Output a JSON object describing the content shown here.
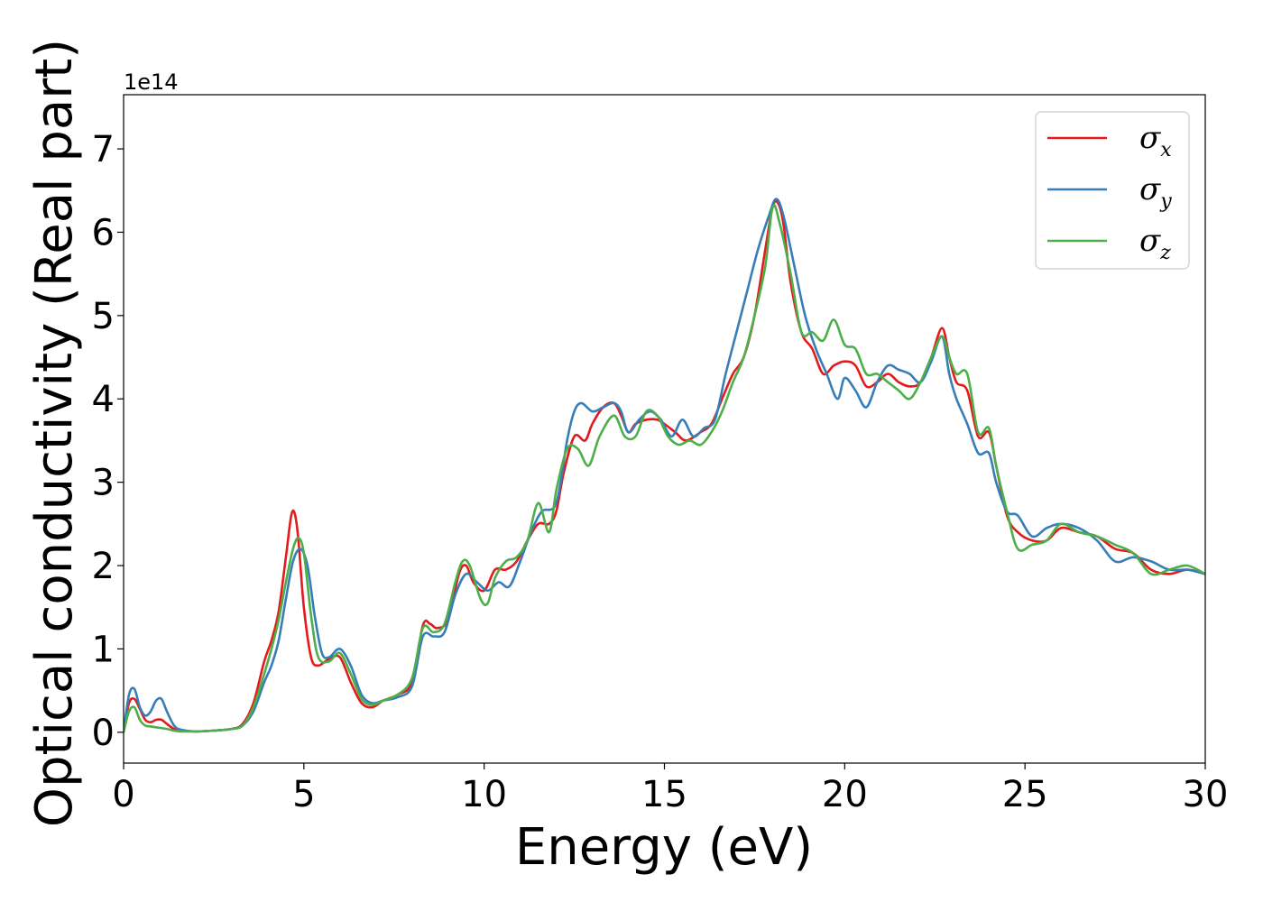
{
  "chart_data": {
    "type": "line",
    "xlabel": "Energy (eV)",
    "ylabel": "Optical conductivity (Real part)",
    "y_offset_label": "1e14",
    "xlim": [
      0,
      30
    ],
    "ylim": [
      -0.37,
      7.65
    ],
    "xticks": [
      0,
      5,
      10,
      15,
      20,
      25,
      30
    ],
    "yticks": [
      0,
      1,
      2,
      3,
      4,
      5,
      6,
      7
    ],
    "grid": false,
    "legend_position": "top-right",
    "series": [
      {
        "name": "σx",
        "symbol": "σ",
        "subscript": "x",
        "color": "#e41a1c",
        "x": [
          0,
          0.15,
          0.3,
          0.45,
          0.6,
          0.75,
          0.9,
          1.05,
          1.2,
          1.4,
          1.6,
          2,
          2.5,
          3,
          3.3,
          3.6,
          3.9,
          4.1,
          4.3,
          4.5,
          4.65,
          4.75,
          4.85,
          5,
          5.2,
          5.4,
          5.7,
          6,
          6.3,
          6.6,
          6.9,
          7.2,
          7.6,
          8,
          8.3,
          8.5,
          8.7,
          9,
          9.3,
          9.5,
          9.7,
          10,
          10.3,
          10.6,
          10.9,
          11.2,
          11.5,
          11.8,
          12,
          12.2,
          12.5,
          12.8,
          13,
          13.3,
          13.6,
          13.8,
          14,
          14.2,
          14.5,
          14.8,
          15,
          15.3,
          15.6,
          16,
          16.3,
          16.6,
          16.9,
          17.2,
          17.5,
          17.8,
          18,
          18.15,
          18.3,
          18.5,
          18.8,
          19.1,
          19.4,
          19.7,
          20,
          20.3,
          20.6,
          20.9,
          21.2,
          21.5,
          21.8,
          22.1,
          22.4,
          22.7,
          22.9,
          23.1,
          23.4,
          23.7,
          24,
          24.2,
          24.5,
          24.8,
          25.2,
          25.6,
          26,
          26.5,
          27,
          27.5,
          28,
          28.5,
          29,
          29.5,
          30
        ],
        "y": [
          0,
          0.35,
          0.4,
          0.28,
          0.15,
          0.12,
          0.15,
          0.15,
          0.1,
          0.04,
          0.02,
          0.01,
          0.02,
          0.04,
          0.1,
          0.35,
          0.85,
          1.1,
          1.45,
          2.1,
          2.6,
          2.62,
          2.3,
          1.5,
          0.9,
          0.8,
          0.88,
          0.9,
          0.6,
          0.35,
          0.3,
          0.38,
          0.45,
          0.6,
          1.28,
          1.3,
          1.25,
          1.35,
          1.9,
          2,
          1.8,
          1.7,
          1.95,
          1.95,
          2.05,
          2.3,
          2.5,
          2.5,
          2.65,
          3.1,
          3.55,
          3.5,
          3.7,
          3.9,
          3.95,
          3.8,
          3.6,
          3.7,
          3.75,
          3.75,
          3.7,
          3.6,
          3.5,
          3.6,
          3.7,
          4,
          4.3,
          4.5,
          5,
          5.8,
          6.3,
          6.35,
          6.1,
          5.4,
          4.8,
          4.6,
          4.3,
          4.4,
          4.45,
          4.4,
          4.15,
          4.2,
          4.3,
          4.2,
          4.15,
          4.2,
          4.5,
          4.85,
          4.5,
          4.2,
          4.1,
          3.55,
          3.6,
          3.2,
          2.6,
          2.4,
          2.3,
          2.3,
          2.45,
          2.4,
          2.35,
          2.2,
          2.15,
          1.95,
          1.9,
          1.95,
          1.9
        ]
      },
      {
        "name": "σy",
        "symbol": "σ",
        "subscript": "y",
        "color": "#377eb8",
        "x": [
          0,
          0.15,
          0.3,
          0.45,
          0.6,
          0.75,
          0.9,
          1.05,
          1.2,
          1.4,
          1.6,
          2,
          2.5,
          3,
          3.3,
          3.6,
          3.9,
          4.1,
          4.3,
          4.5,
          4.7,
          4.9,
          5.1,
          5.3,
          5.5,
          5.7,
          6,
          6.3,
          6.6,
          6.9,
          7.2,
          7.6,
          8,
          8.3,
          8.6,
          8.9,
          9.2,
          9.5,
          9.8,
          10.1,
          10.4,
          10.7,
          11,
          11.3,
          11.6,
          12,
          12.3,
          12.5,
          12.7,
          13,
          13.3,
          13.6,
          13.8,
          14,
          14.3,
          14.6,
          14.9,
          15.2,
          15.5,
          15.8,
          16.1,
          16.4,
          16.7,
          17,
          17.3,
          17.6,
          17.9,
          18.1,
          18.3,
          18.6,
          18.9,
          19.2,
          19.5,
          19.8,
          20,
          20.3,
          20.6,
          20.9,
          21.2,
          21.5,
          21.8,
          22.1,
          22.4,
          22.7,
          22.9,
          23.1,
          23.4,
          23.7,
          24,
          24.2,
          24.5,
          24.8,
          25.2,
          25.6,
          26,
          26.5,
          27,
          27.5,
          28,
          28.5,
          29,
          29.5,
          30
        ],
        "y": [
          0,
          0.45,
          0.52,
          0.3,
          0.2,
          0.25,
          0.38,
          0.4,
          0.25,
          0.08,
          0.03,
          0.01,
          0.02,
          0.04,
          0.08,
          0.25,
          0.6,
          0.8,
          1.1,
          1.6,
          2.05,
          2.2,
          2.0,
          1.4,
          0.95,
          0.9,
          1.0,
          0.8,
          0.45,
          0.35,
          0.38,
          0.42,
          0.55,
          1.15,
          1.15,
          1.2,
          1.65,
          1.9,
          1.8,
          1.7,
          1.8,
          1.75,
          2.05,
          2.4,
          2.65,
          2.75,
          3.5,
          3.85,
          3.95,
          3.85,
          3.9,
          3.95,
          3.85,
          3.6,
          3.75,
          3.85,
          3.75,
          3.55,
          3.75,
          3.55,
          3.65,
          3.75,
          4.3,
          4.8,
          5.3,
          5.8,
          6.2,
          6.4,
          6.2,
          5.6,
          5.0,
          4.6,
          4.3,
          4.0,
          4.25,
          4.1,
          3.9,
          4.2,
          4.4,
          4.35,
          4.3,
          4.2,
          4.45,
          4.75,
          4.3,
          4.0,
          3.7,
          3.35,
          3.35,
          3.0,
          2.65,
          2.6,
          2.35,
          2.45,
          2.5,
          2.45,
          2.3,
          2.05,
          2.1,
          2.05,
          1.95,
          1.95,
          1.9
        ]
      },
      {
        "name": "σz",
        "symbol": "σ",
        "subscript": "z",
        "color": "#4daf4a",
        "x": [
          0,
          0.15,
          0.3,
          0.45,
          0.6,
          0.75,
          0.9,
          1.05,
          1.2,
          1.4,
          1.6,
          2,
          2.5,
          3,
          3.3,
          3.6,
          3.9,
          4.1,
          4.3,
          4.5,
          4.7,
          4.85,
          5,
          5.2,
          5.4,
          5.7,
          6,
          6.3,
          6.6,
          6.9,
          7.2,
          7.6,
          8,
          8.3,
          8.6,
          8.9,
          9.2,
          9.4,
          9.6,
          9.9,
          10.1,
          10.3,
          10.6,
          10.9,
          11.2,
          11.5,
          11.8,
          12,
          12.3,
          12.6,
          12.9,
          13.2,
          13.6,
          13.9,
          14.2,
          14.5,
          14.8,
          15.1,
          15.4,
          15.7,
          16,
          16.3,
          16.6,
          16.9,
          17.2,
          17.5,
          17.8,
          18,
          18.2,
          18.5,
          18.8,
          19.1,
          19.4,
          19.7,
          20,
          20.3,
          20.6,
          20.9,
          21.2,
          21.5,
          21.8,
          22.1,
          22.4,
          22.7,
          22.9,
          23.1,
          23.4,
          23.7,
          24,
          24.2,
          24.5,
          24.8,
          25.2,
          25.6,
          26,
          26.5,
          27,
          27.5,
          28,
          28.5,
          29,
          29.5,
          30
        ],
        "y": [
          0,
          0.25,
          0.3,
          0.15,
          0.08,
          0.07,
          0.06,
          0.05,
          0.04,
          0.02,
          0.01,
          0.01,
          0.02,
          0.04,
          0.08,
          0.3,
          0.7,
          1.0,
          1.35,
          1.8,
          2.2,
          2.33,
          2.15,
          1.4,
          0.9,
          0.85,
          0.95,
          0.7,
          0.4,
          0.33,
          0.38,
          0.45,
          0.65,
          1.25,
          1.2,
          1.3,
          1.8,
          2.05,
          2.0,
          1.6,
          1.55,
          1.85,
          2.05,
          2.1,
          2.3,
          2.75,
          2.4,
          2.9,
          3.4,
          3.4,
          3.2,
          3.55,
          3.8,
          3.55,
          3.55,
          3.85,
          3.8,
          3.55,
          3.45,
          3.5,
          3.45,
          3.6,
          3.85,
          4.2,
          4.5,
          5.0,
          5.6,
          6.3,
          6.1,
          5.5,
          4.8,
          4.8,
          4.7,
          4.95,
          4.65,
          4.6,
          4.3,
          4.3,
          4.2,
          4.1,
          4.0,
          4.2,
          4.5,
          4.75,
          4.5,
          4.3,
          4.3,
          3.6,
          3.65,
          3.2,
          2.65,
          2.2,
          2.25,
          2.3,
          2.5,
          2.4,
          2.35,
          2.25,
          2.15,
          1.9,
          1.95,
          2.0,
          1.9
        ]
      }
    ]
  }
}
